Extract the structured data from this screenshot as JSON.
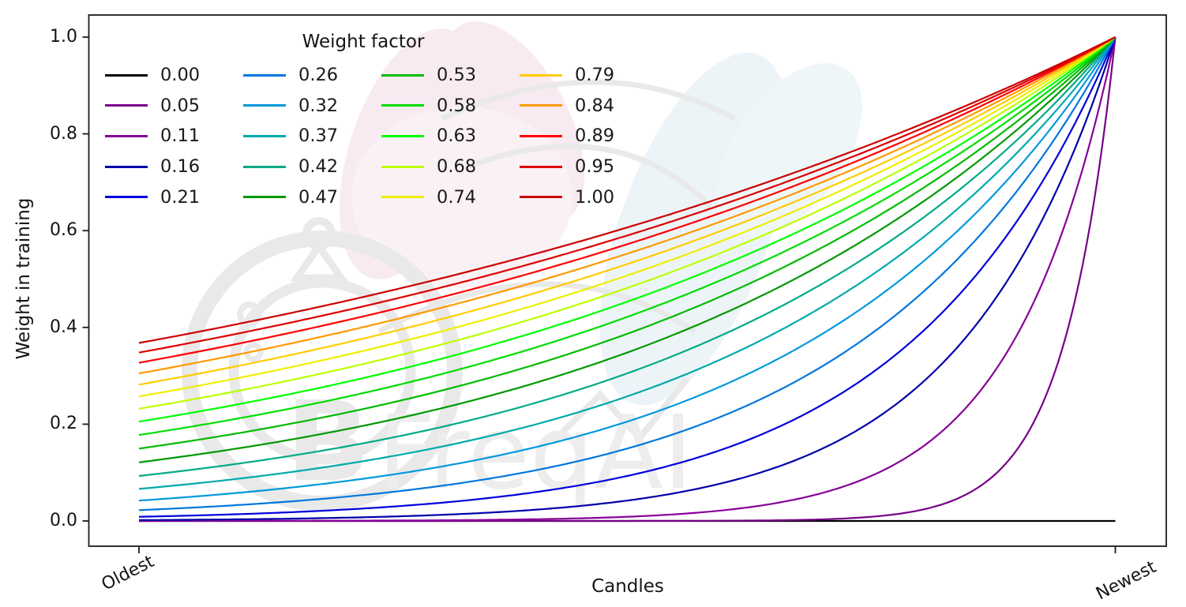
{
  "axes": {
    "ylabel": "Weight in training",
    "xlabel": "Candles",
    "y_ticks": [
      "1.0",
      "0.8",
      "0.6",
      "0.4",
      "0.2",
      "0.0"
    ],
    "x_ticks": [
      "Oldest",
      "Newest"
    ]
  },
  "legend": {
    "title": "Weight factor"
  },
  "watermark": {
    "text": "FreqAI",
    "logo": "freqai-stopwatch-bird-logo",
    "text_color": "#ededed",
    "logo_color": "#e9e9e9"
  },
  "chart_data": {
    "type": "line",
    "title": "",
    "xlabel": "Candles",
    "ylabel": "Weight in training",
    "x_range_labels": [
      "Oldest",
      "Newest"
    ],
    "xlim": [
      0,
      1
    ],
    "ylim": [
      0,
      1
    ],
    "y_tick_values": [
      0.0,
      0.2,
      0.4,
      0.6,
      0.8,
      1.0
    ],
    "grid": false,
    "legend_title": "Weight factor",
    "legend_position": "upper left, 4 columns, no frame",
    "formula": "weight(x) = exp(-(1 - x) / factor) for x in [0,1] (0 = Oldest candle, 1 = Newest candle); the factor 0.00 series stays at weight 0 across all candles",
    "series": [
      {
        "label": "0.00",
        "factor": 0.0,
        "color": "#000000",
        "weight_at_oldest": 0.0,
        "weight_at_newest": 0.0
      },
      {
        "label": "0.05",
        "factor": 0.0526,
        "color": "#770088",
        "weight_at_oldest": 0.0,
        "weight_at_newest": 1.0
      },
      {
        "label": "0.11",
        "factor": 0.1053,
        "color": "#880099",
        "weight_at_oldest": 0.0001,
        "weight_at_newest": 1.0
      },
      {
        "label": "0.16",
        "factor": 0.1579,
        "color": "#0000aa",
        "weight_at_oldest": 0.0018,
        "weight_at_newest": 1.0
      },
      {
        "label": "0.21",
        "factor": 0.2105,
        "color": "#0000dd",
        "weight_at_oldest": 0.0087,
        "weight_at_newest": 1.0
      },
      {
        "label": "0.26",
        "factor": 0.2632,
        "color": "#0077dd",
        "weight_at_oldest": 0.0224,
        "weight_at_newest": 1.0
      },
      {
        "label": "0.32",
        "factor": 0.3158,
        "color": "#0099dd",
        "weight_at_oldest": 0.0421,
        "weight_at_newest": 1.0
      },
      {
        "label": "0.37",
        "factor": 0.3684,
        "color": "#00aaaa",
        "weight_at_oldest": 0.0663,
        "weight_at_newest": 1.0
      },
      {
        "label": "0.42",
        "factor": 0.4211,
        "color": "#00aa88",
        "weight_at_oldest": 0.093,
        "weight_at_newest": 1.0
      },
      {
        "label": "0.47",
        "factor": 0.4737,
        "color": "#009900",
        "weight_at_oldest": 0.1211,
        "weight_at_newest": 1.0
      },
      {
        "label": "0.53",
        "factor": 0.5263,
        "color": "#00bb00",
        "weight_at_oldest": 0.1496,
        "weight_at_newest": 1.0
      },
      {
        "label": "0.58",
        "factor": 0.5789,
        "color": "#00dd00",
        "weight_at_oldest": 0.1779,
        "weight_at_newest": 1.0
      },
      {
        "label": "0.63",
        "factor": 0.6316,
        "color": "#00ff00",
        "weight_at_oldest": 0.2054,
        "weight_at_newest": 1.0
      },
      {
        "label": "0.68",
        "factor": 0.6842,
        "color": "#bbff00",
        "weight_at_oldest": 0.2318,
        "weight_at_newest": 1.0
      },
      {
        "label": "0.74",
        "factor": 0.7368,
        "color": "#eeee00",
        "weight_at_oldest": 0.2574,
        "weight_at_newest": 1.0
      },
      {
        "label": "0.79",
        "factor": 0.7895,
        "color": "#ffcc00",
        "weight_at_oldest": 0.2817,
        "weight_at_newest": 1.0
      },
      {
        "label": "0.84",
        "factor": 0.8421,
        "color": "#ff9900",
        "weight_at_oldest": 0.3049,
        "weight_at_newest": 1.0
      },
      {
        "label": "0.89",
        "factor": 0.8947,
        "color": "#ff0000",
        "weight_at_oldest": 0.3269,
        "weight_at_newest": 1.0
      },
      {
        "label": "0.95",
        "factor": 0.9474,
        "color": "#dd0000",
        "weight_at_oldest": 0.3479,
        "weight_at_newest": 1.0
      },
      {
        "label": "1.00",
        "factor": 1.0,
        "color": "#cc0000",
        "weight_at_oldest": 0.3679,
        "weight_at_newest": 1.0
      }
    ]
  }
}
